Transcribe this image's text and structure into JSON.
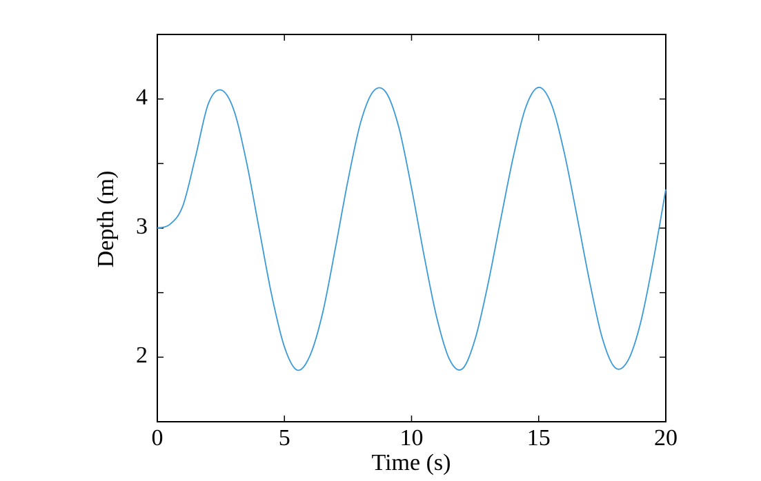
{
  "chart_data": {
    "type": "line",
    "xlabel": "Time (s)",
    "ylabel": "Depth (m)",
    "x": [
      0,
      0.5,
      1,
      1.5,
      2,
      2.5,
      3,
      3.5,
      4,
      4.5,
      5,
      5.5,
      6,
      6.5,
      7,
      7.5,
      8,
      8.5,
      9,
      9.5,
      10,
      10.5,
      11,
      11.5,
      12,
      12.5,
      13,
      13.5,
      14,
      14.5,
      15,
      15.5,
      16,
      16.5,
      17,
      17.5,
      18,
      18.5,
      19,
      19.5,
      20
    ],
    "series": [
      {
        "color": "#3a9ad9",
        "values": [
          3.0,
          3.03,
          3.17,
          3.55,
          3.96,
          4.07,
          3.92,
          3.52,
          3.0,
          2.48,
          2.08,
          1.9,
          2.01,
          2.34,
          2.84,
          3.37,
          3.82,
          4.06,
          4.05,
          3.78,
          3.31,
          2.78,
          2.3,
          1.98,
          1.91,
          2.14,
          2.56,
          3.06,
          3.55,
          3.94,
          4.09,
          3.96,
          3.59,
          3.1,
          2.59,
          2.15,
          1.92,
          1.97,
          2.26,
          2.74,
          3.3
        ]
      }
    ],
    "xlim": [
      0,
      20
    ],
    "xticks": [
      0,
      5,
      10,
      15,
      20
    ],
    "ylim": [
      1.5,
      4.5
    ],
    "yticks": [
      2,
      3,
      4
    ],
    "yminor_ticks": [
      2.5,
      3.5
    ],
    "grid": false
  }
}
